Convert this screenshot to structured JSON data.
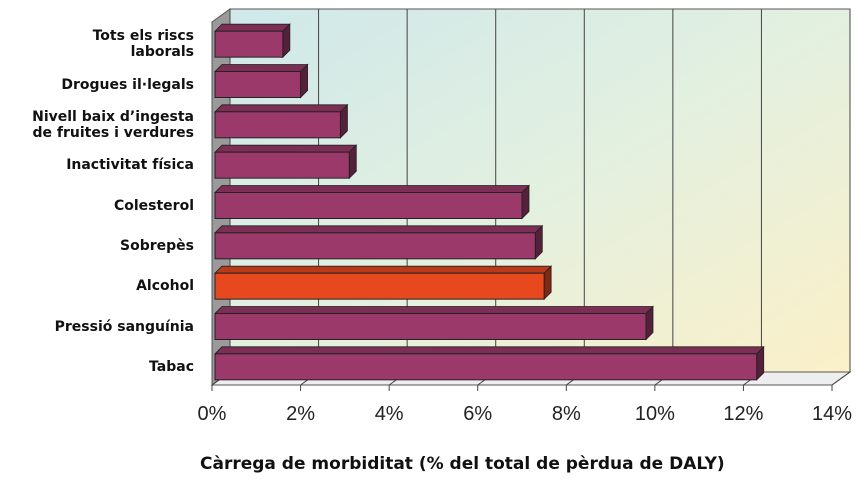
{
  "chart_data": {
    "type": "bar",
    "orientation": "horizontal",
    "x_label": "Càrrega de morbiditat (% del total de pèrdua de DALY)",
    "categories": [
      "Tots els riscs\nlaborals",
      "Drogues il·legals",
      "Nivell baix d’ingesta\nde fruites i verdures",
      "Inactivitat física",
      "Colesterol",
      "Sobrepès",
      "Alcohol",
      "Pressió sanguínia",
      "Tabac"
    ],
    "values": [
      1.6,
      2.0,
      2.9,
      3.1,
      7.0,
      7.3,
      7.5,
      9.8,
      12.3
    ],
    "colors": [
      "#9b3a6a",
      "#9b3a6a",
      "#9b3a6a",
      "#9b3a6a",
      "#9b3a6a",
      "#9b3a6a",
      "#e8481e",
      "#9b3a6a",
      "#9b3a6a"
    ],
    "xlim": [
      0,
      14
    ],
    "xticks": [
      {
        "value": 0,
        "label": "0%"
      },
      {
        "value": 2,
        "label": "2%"
      },
      {
        "value": 4,
        "label": "4%"
      },
      {
        "value": 6,
        "label": "6%"
      },
      {
        "value": 8,
        "label": "8%"
      },
      {
        "value": 10,
        "label": "10%"
      },
      {
        "value": 12,
        "label": "12%"
      },
      {
        "value": 14,
        "label": "14%"
      }
    ],
    "grid": true
  }
}
